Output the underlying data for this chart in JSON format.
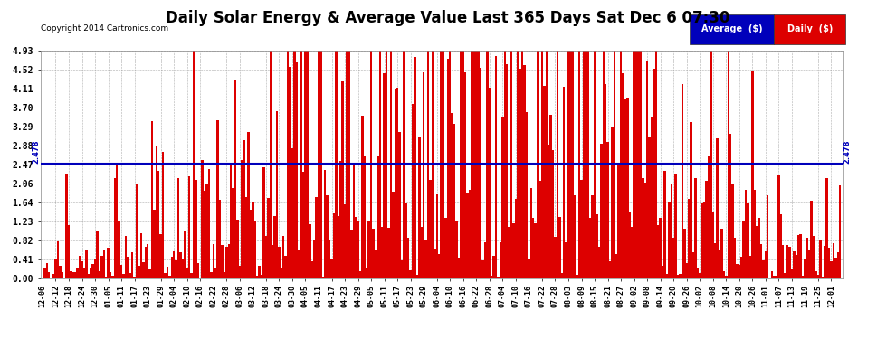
{
  "title": "Daily Solar Energy & Average Value Last 365 Days Sat Dec 6 07:30",
  "copyright": "Copyright 2014 Cartronics.com",
  "average_value": 2.478,
  "average_label": "2.478",
  "ylim": [
    0.0,
    4.93
  ],
  "yticks": [
    0.0,
    0.41,
    0.82,
    1.23,
    1.64,
    2.06,
    2.47,
    2.88,
    3.29,
    3.7,
    4.11,
    4.52,
    4.93
  ],
  "bar_color": "#dd0000",
  "average_line_color": "#0000bb",
  "background_color": "#ffffff",
  "plot_bg_color": "#ffffff",
  "grid_color": "#999999",
  "title_fontsize": 12,
  "legend_avg_bg": "#0000bb",
  "legend_daily_bg": "#dd0000",
  "num_bars": 365,
  "x_tick_labels": [
    "12-06",
    "12-12",
    "12-18",
    "12-24",
    "12-30",
    "01-05",
    "01-11",
    "01-17",
    "01-23",
    "01-29",
    "02-04",
    "02-10",
    "02-16",
    "02-22",
    "02-28",
    "03-06",
    "03-12",
    "03-18",
    "03-24",
    "03-30",
    "04-05",
    "04-11",
    "04-17",
    "04-23",
    "04-29",
    "05-05",
    "05-11",
    "05-17",
    "05-23",
    "05-29",
    "06-04",
    "06-10",
    "06-16",
    "06-22",
    "06-28",
    "07-04",
    "07-10",
    "07-16",
    "07-22",
    "07-28",
    "08-03",
    "08-09",
    "08-15",
    "08-21",
    "08-27",
    "09-02",
    "09-08",
    "09-14",
    "09-20",
    "09-26",
    "10-02",
    "10-08",
    "10-14",
    "10-20",
    "10-26",
    "11-01",
    "11-07",
    "11-13",
    "11-19",
    "11-25",
    "12-01"
  ]
}
